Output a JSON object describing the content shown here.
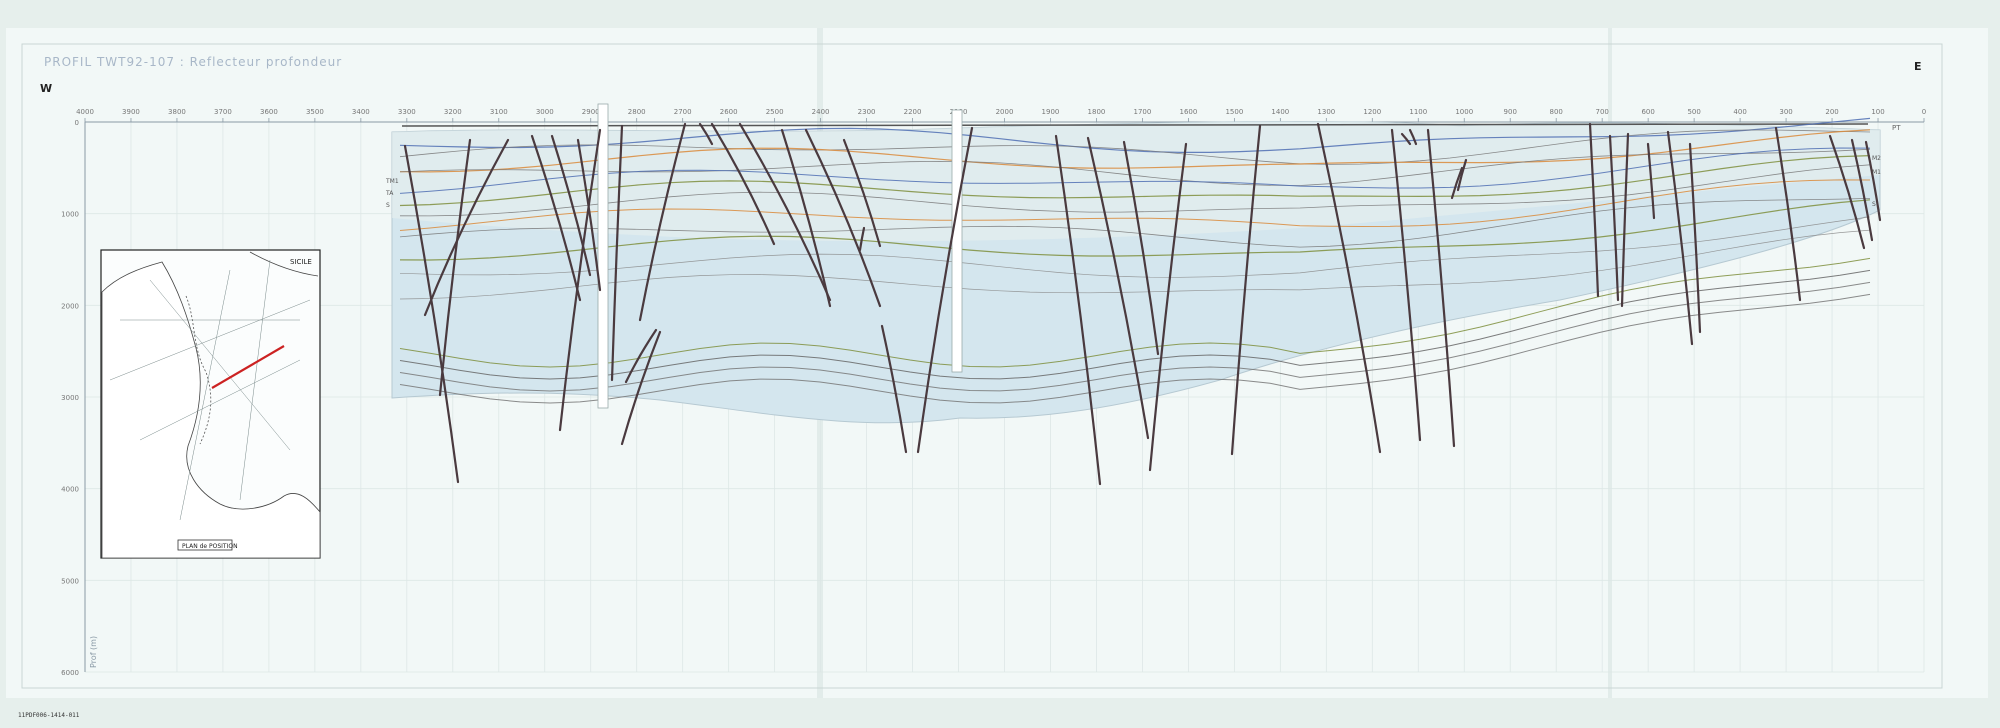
{
  "title": "PROFIL TWT92-107 : Reflecteur profondeur",
  "west_label": "W",
  "east_label": "E",
  "x_ticks": [
    "4000",
    "3900",
    "3800",
    "3700",
    "3600",
    "3500",
    "3400",
    "3300",
    "3200",
    "3100",
    "3000",
    "2900",
    "2800",
    "2700",
    "2600",
    "2500",
    "2400",
    "2300",
    "2200",
    "2100",
    "2000",
    "1900",
    "1800",
    "1700",
    "1600",
    "1500",
    "1400",
    "1300",
    "1200",
    "1100",
    "1000",
    "900",
    "800",
    "700",
    "600",
    "500",
    "400",
    "300",
    "200",
    "100",
    "0"
  ],
  "pt_label": "PT",
  "depth_ticks": [
    "0",
    "1000",
    "2000",
    "3000",
    "4000",
    "5000",
    "6000"
  ],
  "depth_axis_label": "Prof (m)",
  "horizon_labels_left": [
    "TM1",
    "TA",
    "S"
  ],
  "horizon_labels_right": [
    "M2",
    "M1",
    "S"
  ],
  "inset": {
    "place_label": "SICILE",
    "caption": "PLAN de POSITION"
  },
  "sheet_code": "11PDF006-1414-011",
  "colors": {
    "paper": "#f2f8f7",
    "section_fill": "#d4e6ee",
    "fault": "#4a3a3f",
    "orange": "#d98a3a",
    "olive": "#7e8e3c",
    "blue": "#4f6fb3",
    "inset_line": "#cc2222"
  }
}
